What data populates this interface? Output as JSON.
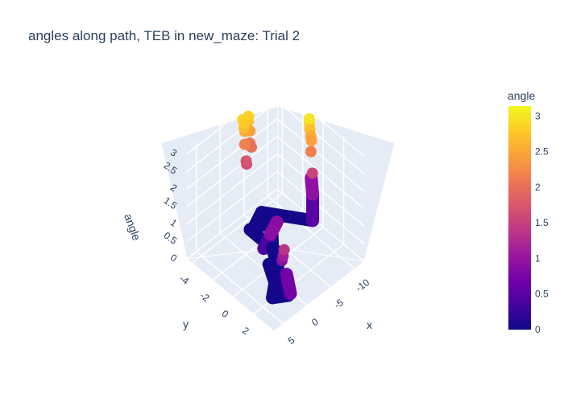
{
  "chart_data": {
    "type": "scatter3d",
    "title": "angles along path, TEB in new_maze: Trial 2",
    "x_axis": {
      "label": "x",
      "ticks": [
        "-10",
        "-5",
        "0",
        "5"
      ],
      "range": [
        -12,
        7
      ]
    },
    "y_axis": {
      "label": "y",
      "ticks": [
        "-4",
        "-2",
        "0",
        "2"
      ],
      "range": [
        -4.5,
        4
      ]
    },
    "z_axis": {
      "label": "angle",
      "ticks": [
        "0",
        "0.5",
        "1",
        "1.5",
        "2",
        "2.5",
        "3"
      ],
      "range": [
        0,
        3.1
      ]
    },
    "colorbar": {
      "title": "angle",
      "ticks": [
        "0",
        "0.5",
        "1",
        "1.5",
        "2",
        "2.5",
        "3"
      ],
      "range": [
        0,
        3.14
      ],
      "colors": [
        "#0d0887",
        "#46039f",
        "#7201a8",
        "#9c179e",
        "#bd3786",
        "#d8576b",
        "#ed7953",
        "#fb9f3a",
        "#fdca26",
        "#f0f921"
      ]
    },
    "segments": [
      {
        "from": [
          -3.5,
          -3.2,
          0.05
        ],
        "to": [
          -3.5,
          -0.3,
          0.05
        ],
        "angle": 0.05
      },
      {
        "from": [
          -3.5,
          -0.3,
          0.05
        ],
        "to": [
          3.0,
          2.0,
          0.05
        ],
        "angle": 0.05
      },
      {
        "from": [
          3.0,
          2.0,
          0.05
        ],
        "to": [
          1.0,
          2.6,
          0.05
        ],
        "angle": 0.05
      },
      {
        "from": [
          1.0,
          2.6,
          0.05
        ],
        "to": [
          0.5,
          1.0,
          0.05
        ],
        "angle": 0.05
      },
      {
        "from": [
          0.5,
          1.0,
          0.05
        ],
        "to": [
          -1.0,
          -0.2,
          0.05
        ],
        "angle": 0.05
      },
      {
        "from": [
          -1.0,
          -0.2,
          0.05
        ],
        "to": [
          -1.8,
          0.2,
          0.05
        ],
        "angle": 0.05
      },
      {
        "from": [
          -1.8,
          0.2,
          0.05
        ],
        "to": [
          -3.5,
          -1.0,
          0.05
        ],
        "angle": 0.05
      },
      {
        "from": [
          -3.5,
          -1.0,
          0.05
        ],
        "to": [
          -6.5,
          -2.5,
          0.05
        ],
        "angle": 0.05
      },
      {
        "from": [
          -6.5,
          -2.5,
          0.05
        ],
        "to": [
          -4.5,
          -3.2,
          0.05
        ],
        "angle": 0.05
      },
      {
        "from": [
          -4.5,
          -3.2,
          0.05
        ],
        "to": [
          -7.0,
          -3.7,
          0.05
        ],
        "angle": 0.05
      },
      {
        "from": [
          -7.0,
          -3.7,
          0.05
        ],
        "to": [
          -11.5,
          -0.8,
          0.05
        ],
        "angle": 0.05
      },
      {
        "from": [
          -11.5,
          -0.8,
          0.05
        ],
        "to": [
          -11.5,
          -0.8,
          0.8
        ],
        "angle": 0.5
      },
      {
        "from": [
          -11.5,
          -0.8,
          0.8
        ],
        "to": [
          -11.2,
          -0.8,
          1.3
        ],
        "angle": 0.95
      },
      {
        "from": [
          -2.5,
          -1.4,
          0.05
        ],
        "to": [
          -3.5,
          -1.2,
          0.4
        ],
        "angle": 0.4
      },
      {
        "from": [
          -3.5,
          -1.2,
          0.4
        ],
        "to": [
          -4.2,
          -0.9,
          0.75
        ],
        "angle": 0.9
      },
      {
        "from": [
          0.5,
          2.6,
          0.05
        ],
        "to": [
          0.9,
          2.4,
          0.6
        ],
        "angle": 0.7
      }
    ],
    "points": [
      {
        "x": 1.0,
        "y": 2.0,
        "angle": 0.9
      },
      {
        "x": 1.2,
        "y": 2.2,
        "angle": 1.1
      },
      {
        "x": 1.4,
        "y": 2.4,
        "angle": 1.35
      },
      {
        "x": -5.5,
        "y": -4.0,
        "angle": 2.0
      },
      {
        "x": -5.4,
        "y": -4.1,
        "angle": 2.1
      },
      {
        "x": -5.4,
        "y": -4.1,
        "angle": 2.45
      },
      {
        "x": -5.3,
        "y": -4.2,
        "angle": 2.72
      },
      {
        "x": -5.3,
        "y": -4.2,
        "angle": 2.85
      },
      {
        "x": -10.8,
        "y": -0.5,
        "angle": 1.55
      },
      {
        "x": -10.7,
        "y": -0.6,
        "angle": 2.15
      },
      {
        "x": -10.8,
        "y": -0.6,
        "angle": 2.45
      },
      {
        "x": -10.9,
        "y": -0.7,
        "angle": 2.55
      },
      {
        "x": -10.9,
        "y": -0.8,
        "angle": 2.72
      },
      {
        "x": -11.0,
        "y": -0.9,
        "angle": 2.86
      },
      {
        "x": -11.0,
        "y": -0.9,
        "angle": 2.98
      },
      {
        "x": -4.5,
        "y": -4.0,
        "angle": 1.62
      },
      {
        "x": -4.4,
        "y": -4.0,
        "angle": 1.72
      },
      {
        "x": -4.3,
        "y": -4.1,
        "angle": 2.18
      },
      {
        "x": -4.3,
        "y": -4.1,
        "angle": 2.55
      },
      {
        "x": -4.2,
        "y": -4.1,
        "angle": 2.68
      },
      {
        "x": -4.2,
        "y": -4.1,
        "angle": 2.8
      },
      {
        "x": -4.1,
        "y": -4.2,
        "angle": 2.88
      }
    ]
  }
}
